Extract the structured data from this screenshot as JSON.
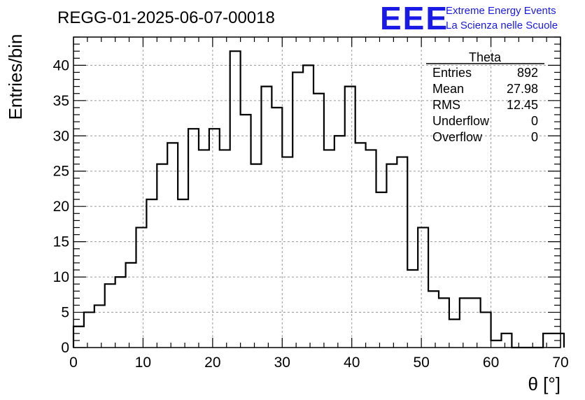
{
  "brand": {
    "logo": "EEE",
    "line1": "Extreme Energy Events",
    "line2": "La Scienza nelle Scuole",
    "color": "#1a1ae6"
  },
  "chart_data": {
    "type": "histogram",
    "title": "REGG-01-2025-06-07-00018",
    "xlabel": "θ [°]",
    "ylabel": "Entries/bin",
    "xlim": [
      0,
      70
    ],
    "ylim": [
      0,
      44
    ],
    "xticks": [
      0,
      10,
      20,
      30,
      40,
      50,
      60,
      70
    ],
    "yticks": [
      0,
      5,
      10,
      15,
      20,
      25,
      30,
      35,
      40
    ],
    "grid": true,
    "bin_width": 1.5,
    "bins_start": 0,
    "counts": [
      3,
      5,
      6,
      9,
      10,
      12,
      17,
      21,
      26,
      29,
      21,
      31,
      28,
      31,
      28,
      42,
      33,
      26,
      37,
      34,
      27,
      39,
      40,
      36,
      28,
      30,
      37,
      29,
      28,
      22,
      26,
      27,
      11,
      17,
      8,
      7,
      4,
      7,
      7,
      5,
      1,
      2,
      0,
      0,
      0,
      2,
      2
    ],
    "stats": {
      "name": "Theta",
      "rows": [
        {
          "label": "Entries",
          "value": "892"
        },
        {
          "label": "Mean",
          "value": "27.98"
        },
        {
          "label": "RMS",
          "value": "12.45"
        },
        {
          "label": "Underflow",
          "value": "0"
        },
        {
          "label": "Overflow",
          "value": "0"
        }
      ]
    },
    "legend_position": "top-right"
  }
}
